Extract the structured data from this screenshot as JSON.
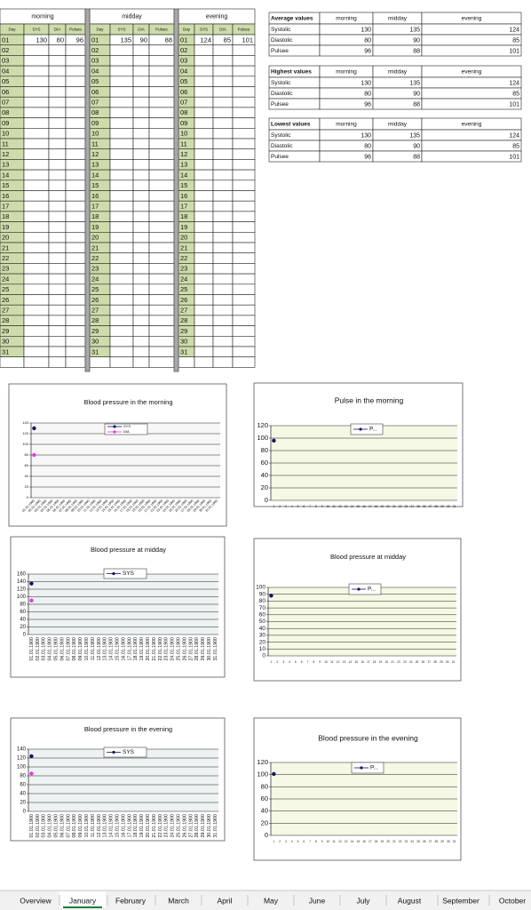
{
  "table": {
    "blocks": [
      {
        "title": "morning",
        "headers": [
          "Day",
          "SYS",
          "DIA",
          "Pulsee"
        ],
        "rows": [
          [
            "01",
            130,
            80,
            96
          ],
          [
            "02"
          ],
          [
            "03"
          ],
          [
            "04"
          ],
          [
            "05"
          ],
          [
            "06"
          ],
          [
            "07"
          ],
          [
            "08"
          ],
          [
            "09"
          ],
          [
            "10"
          ],
          [
            "11"
          ],
          [
            "12"
          ],
          [
            "13"
          ],
          [
            "14"
          ],
          [
            "15"
          ],
          [
            "16"
          ],
          [
            "17"
          ],
          [
            "18"
          ],
          [
            "19"
          ],
          [
            "20"
          ],
          [
            "21"
          ],
          [
            "22"
          ],
          [
            "23"
          ],
          [
            "24"
          ],
          [
            "25"
          ],
          [
            "26"
          ],
          [
            "27"
          ],
          [
            "28"
          ],
          [
            "29"
          ],
          [
            "30"
          ],
          [
            "31"
          ]
        ]
      },
      {
        "title": "midday",
        "headers": [
          "Day",
          "SYS",
          "DIA",
          "Pulsee"
        ],
        "rows": [
          [
            "01",
            135,
            90,
            88
          ],
          [
            "02"
          ],
          [
            "03"
          ],
          [
            "04"
          ],
          [
            "05"
          ],
          [
            "06"
          ],
          [
            "07"
          ],
          [
            "08"
          ],
          [
            "09"
          ],
          [
            "10"
          ],
          [
            "11"
          ],
          [
            "12"
          ],
          [
            "13"
          ],
          [
            "14"
          ],
          [
            "15"
          ],
          [
            "16"
          ],
          [
            "17"
          ],
          [
            "18"
          ],
          [
            "19"
          ],
          [
            "20"
          ],
          [
            "21"
          ],
          [
            "22"
          ],
          [
            "23"
          ],
          [
            "24"
          ],
          [
            "25"
          ],
          [
            "26"
          ],
          [
            "27"
          ],
          [
            "28"
          ],
          [
            "29"
          ],
          [
            "30"
          ],
          [
            "31"
          ]
        ]
      },
      {
        "title": "evening",
        "headers": [
          "Day",
          "SYS",
          "DIA",
          "Pulsee"
        ],
        "rows": [
          [
            "01",
            124,
            85,
            101
          ],
          [
            "02"
          ],
          [
            "03"
          ],
          [
            "04"
          ],
          [
            "05"
          ],
          [
            "06"
          ],
          [
            "07"
          ],
          [
            "08"
          ],
          [
            "09"
          ],
          [
            "10"
          ],
          [
            "11"
          ],
          [
            "12"
          ],
          [
            "13"
          ],
          [
            "14"
          ],
          [
            "15"
          ],
          [
            "16"
          ],
          [
            "17"
          ],
          [
            "18"
          ],
          [
            "19"
          ],
          [
            "20"
          ],
          [
            "21"
          ],
          [
            "22"
          ],
          [
            "23"
          ],
          [
            "24"
          ],
          [
            "25"
          ],
          [
            "26"
          ],
          [
            "27"
          ],
          [
            "28"
          ],
          [
            "29"
          ],
          [
            "30"
          ],
          [
            "31"
          ]
        ]
      }
    ]
  },
  "summary": [
    {
      "title": "Average values",
      "columns": [
        "morning",
        "midday",
        "evening"
      ],
      "rows": [
        {
          "label": "Systolic",
          "values": [
            130,
            135,
            124
          ]
        },
        {
          "label": "Diastolic",
          "values": [
            80,
            90,
            85
          ]
        },
        {
          "label": "Pulsee",
          "values": [
            96,
            88,
            101
          ]
        }
      ]
    },
    {
      "title": "Highest values",
      "columns": [
        "morning",
        "midday",
        "evening"
      ],
      "rows": [
        {
          "label": "Systolic",
          "values": [
            130,
            135,
            124
          ]
        },
        {
          "label": "Diastolic",
          "values": [
            80,
            90,
            85
          ]
        },
        {
          "label": "Pulsee",
          "values": [
            96,
            88,
            101
          ]
        }
      ]
    },
    {
      "title": "Lowest values",
      "columns": [
        "morning",
        "midday",
        "evening"
      ],
      "rows": [
        {
          "label": "Systolic",
          "values": [
            130,
            135,
            124
          ]
        },
        {
          "label": "Diastolic",
          "values": [
            80,
            90,
            85
          ]
        },
        {
          "label": "Pulsee",
          "values": [
            96,
            88,
            101
          ]
        }
      ]
    }
  ],
  "charts": [
    {
      "type": "line",
      "title": "Blood pressure in the morning",
      "categories": [
        "01.01.1900",
        "02.01.1900",
        "03.01.1900",
        "04.01.1900",
        "05.01.1900",
        "06.01.1900",
        "07.01.1900",
        "08.01.1900",
        "09.01.1900",
        "10.01.1900",
        "11.01.1900",
        "12.01.1900",
        "13.01.1900",
        "14.01.1900",
        "15.01.1900",
        "16.01.1900",
        "17.01.1900",
        "18.01.1900",
        "19.01.1900",
        "20.01.1900",
        "21.01.1900",
        "22.01.1900",
        "23.01.1900",
        "24.01.1900",
        "25.01.1900",
        "26.01.1900",
        "27.01.1900",
        "28.01.1900",
        "29.01.1900",
        "30.01.1900",
        "31.01.1900"
      ],
      "series": [
        {
          "name": "SYS",
          "color": "#14145e",
          "values": [
            130,
            null,
            null,
            null,
            null,
            null,
            null,
            null,
            null,
            null,
            null,
            null,
            null,
            null,
            null,
            null,
            null,
            null,
            null,
            null,
            null,
            null,
            null,
            null,
            null,
            null,
            null,
            null,
            null,
            null,
            null
          ]
        },
        {
          "name": "DIA",
          "color": "#e03ce0",
          "values": [
            80,
            null,
            null,
            null,
            null,
            null,
            null,
            null,
            null,
            null,
            null,
            null,
            null,
            null,
            null,
            null,
            null,
            null,
            null,
            null,
            null,
            null,
            null,
            null,
            null,
            null,
            null,
            null,
            null,
            null,
            null
          ]
        }
      ],
      "ylim": [
        0,
        140
      ],
      "yticks": [
        0,
        20,
        40,
        60,
        80,
        100,
        120,
        140
      ],
      "grid": true,
      "plot_color": "#f7f7f7"
    },
    {
      "type": "line",
      "title": "Pulse in the morning",
      "categories": [
        1,
        2,
        3,
        4,
        5,
        6,
        7,
        8,
        9,
        10,
        11,
        12,
        13,
        14,
        15,
        16,
        17,
        18,
        19,
        20,
        21,
        22,
        23,
        24,
        25,
        26,
        27,
        28,
        29,
        30,
        31
      ],
      "series": [
        {
          "name": "P...",
          "color": "#14145e",
          "values": [
            96,
            null,
            null,
            null,
            null,
            null,
            null,
            null,
            null,
            null,
            null,
            null,
            null,
            null,
            null,
            null,
            null,
            null,
            null,
            null,
            null,
            null,
            null,
            null,
            null,
            null,
            null,
            null,
            null,
            null,
            null
          ]
        }
      ],
      "ylim": [
        0,
        120
      ],
      "yticks": [
        0,
        20,
        40,
        60,
        80,
        100,
        120
      ],
      "grid": true,
      "plot_color": "#f5f8e4"
    },
    {
      "type": "line",
      "title": "Blood pressure at midday",
      "categories": [
        "01.01.1900",
        "02.01.1900",
        "03.01.1900",
        "04.01.1900",
        "05.01.1900",
        "06.01.1900",
        "07.01.1900",
        "08.01.1900",
        "09.01.1900",
        "10.01.1900",
        "11.01.1900",
        "12.01.1900",
        "13.01.1900",
        "14.01.1900",
        "15.01.1900",
        "16.01.1900",
        "17.01.1900",
        "18.01.1900",
        "19.01.1900",
        "20.01.1900",
        "21.01.1900",
        "22.01.1900",
        "23.01.1900",
        "24.01.1900",
        "25.01.1900",
        "26.01.1900",
        "27.01.1900",
        "28.01.1900",
        "29.01.1900",
        "30.01.1900",
        "31.01.1900"
      ],
      "series": [
        {
          "name": "SYS",
          "color": "#14145e",
          "values": [
            135,
            null,
            null,
            null,
            null,
            null,
            null,
            null,
            null,
            null,
            null,
            null,
            null,
            null,
            null,
            null,
            null,
            null,
            null,
            null,
            null,
            null,
            null,
            null,
            null,
            null,
            null,
            null,
            null,
            null,
            null
          ]
        },
        {
          "color": "#e03ce0",
          "values": [
            90,
            null,
            null,
            null,
            null,
            null,
            null,
            null,
            null,
            null,
            null,
            null,
            null,
            null,
            null,
            null,
            null,
            null,
            null,
            null,
            null,
            null,
            null,
            null,
            null,
            null,
            null,
            null,
            null,
            null,
            null
          ]
        }
      ],
      "ylim": [
        0,
        160
      ],
      "yticks": [
        0,
        20,
        40,
        60,
        80,
        100,
        120,
        140,
        160
      ],
      "grid": true,
      "plot_color": "#eef2f2"
    },
    {
      "type": "line",
      "title": "Blood pressure at midday",
      "categories": [
        1,
        2,
        3,
        4,
        5,
        6,
        7,
        8,
        9,
        10,
        11,
        12,
        13,
        14,
        15,
        16,
        17,
        18,
        19,
        20,
        21,
        22,
        23,
        24,
        25,
        26,
        27,
        28,
        29,
        30,
        31
      ],
      "series": [
        {
          "name": "P...",
          "color": "#14145e",
          "values": [
            88,
            null,
            null,
            null,
            null,
            null,
            null,
            null,
            null,
            null,
            null,
            null,
            null,
            null,
            null,
            null,
            null,
            null,
            null,
            null,
            null,
            null,
            null,
            null,
            null,
            null,
            null,
            null,
            null,
            null,
            null
          ]
        }
      ],
      "ylim": [
        0,
        100
      ],
      "yticks": [
        0,
        10,
        20,
        30,
        40,
        50,
        60,
        70,
        80,
        90,
        100
      ],
      "grid": true,
      "plot_color": "#f5f8e4"
    },
    {
      "type": "line",
      "title": "Blood pressure in the evening",
      "categories": [
        "01.01.1900",
        "02.01.1900",
        "03.01.1900",
        "04.01.1900",
        "05.01.1900",
        "06.01.1900",
        "07.01.1900",
        "08.01.1900",
        "09.01.1900",
        "10.01.1900",
        "11.01.1900",
        "12.01.1900",
        "13.01.1900",
        "14.01.1900",
        "15.01.1900",
        "16.01.1900",
        "17.01.1900",
        "18.01.1900",
        "19.01.1900",
        "20.01.1900",
        "21.01.1900",
        "22.01.1900",
        "23.01.1900",
        "24.01.1900",
        "25.01.1900",
        "26.01.1900",
        "27.01.1900",
        "28.01.1900",
        "29.01.1900",
        "30.01.1900",
        "31.01.1900"
      ],
      "series": [
        {
          "name": "SYS",
          "color": "#14145e",
          "values": [
            124,
            null,
            null,
            null,
            null,
            null,
            null,
            null,
            null,
            null,
            null,
            null,
            null,
            null,
            null,
            null,
            null,
            null,
            null,
            null,
            null,
            null,
            null,
            null,
            null,
            null,
            null,
            null,
            null,
            null,
            null
          ]
        },
        {
          "color": "#e03ce0",
          "values": [
            85,
            null,
            null,
            null,
            null,
            null,
            null,
            null,
            null,
            null,
            null,
            null,
            null,
            null,
            null,
            null,
            null,
            null,
            null,
            null,
            null,
            null,
            null,
            null,
            null,
            null,
            null,
            null,
            null,
            null,
            null
          ]
        }
      ],
      "ylim": [
        0,
        140
      ],
      "yticks": [
        0,
        20,
        40,
        60,
        80,
        100,
        120,
        140
      ],
      "grid": true,
      "plot_color": "#eef2f2"
    },
    {
      "type": "line",
      "title": "Blood pressure in the evening",
      "categories": [
        1,
        2,
        3,
        4,
        5,
        6,
        7,
        8,
        9,
        10,
        11,
        12,
        13,
        14,
        15,
        16,
        17,
        18,
        19,
        20,
        21,
        22,
        23,
        24,
        25,
        26,
        27,
        28,
        29,
        30,
        31
      ],
      "series": [
        {
          "name": "P...",
          "color": "#14145e",
          "values": [
            101,
            null,
            null,
            null,
            null,
            null,
            null,
            null,
            null,
            null,
            null,
            null,
            null,
            null,
            null,
            null,
            null,
            null,
            null,
            null,
            null,
            null,
            null,
            null,
            null,
            null,
            null,
            null,
            null,
            null,
            null
          ]
        }
      ],
      "ylim": [
        0,
        120
      ],
      "yticks": [
        0,
        20,
        40,
        60,
        80,
        100,
        120
      ],
      "grid": true,
      "plot_color": "#f5f8e4"
    }
  ],
  "tabs": {
    "items": [
      "Overview",
      "January",
      "February",
      "March",
      "April",
      "May",
      "June",
      "July",
      "August",
      "September",
      "October"
    ],
    "active": 1
  }
}
